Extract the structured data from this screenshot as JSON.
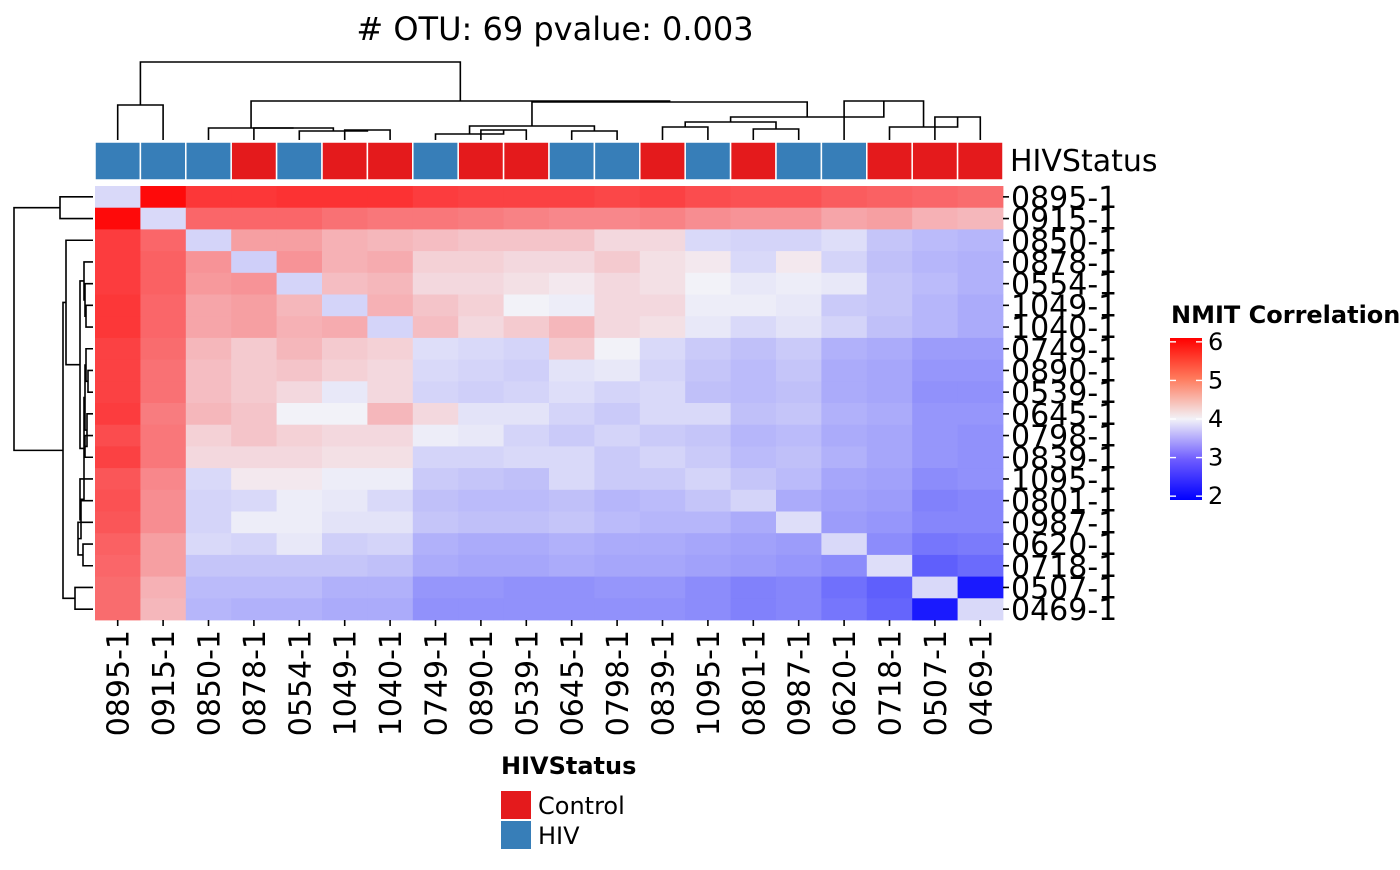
{
  "chart_data": {
    "type": "heatmap",
    "title": "# OTU: 69 pvalue: 0.003",
    "samples": [
      "0895-1",
      "0915-1",
      "0850-1",
      "0878-1",
      "0554-1",
      "1049-1",
      "1040-1",
      "0749-1",
      "0890-1",
      "0539-1",
      "0645-1",
      "0798-1",
      "0839-1",
      "1095-1",
      "0801-1",
      "0987-1",
      "0620-1",
      "0718-1",
      "0507-1",
      "0469-1"
    ],
    "rows": [
      "0895-1",
      "0915-1",
      "0850-1",
      "0878-1",
      "0554-1",
      "1049-1",
      "1040-1",
      "0749-1",
      "0890-1",
      "0539-1",
      "0645-1",
      "0798-1",
      "0839-1",
      "1095-1",
      "0801-1",
      "0987-1",
      "0620-1",
      "0718-1",
      "0507-1",
      "0469-1"
    ],
    "hiv_status": [
      "HIV",
      "HIV",
      "HIV",
      "Control",
      "HIV",
      "Control",
      "Control",
      "HIV",
      "Control",
      "Control",
      "HIV",
      "HIV",
      "Control",
      "HIV",
      "Control",
      "HIV",
      "HIV",
      "Control",
      "Control",
      "Control"
    ],
    "annotation_label": "HIVStatus",
    "values": [
      [
        3.75,
        6.0,
        5.55,
        5.55,
        5.6,
        5.6,
        5.6,
        5.5,
        5.45,
        5.45,
        5.45,
        5.4,
        5.45,
        5.35,
        5.3,
        5.3,
        5.2,
        5.15,
        5.1,
        5.05
      ],
      [
        6.0,
        3.75,
        5.1,
        5.1,
        5.1,
        5.0,
        4.95,
        4.95,
        4.9,
        4.85,
        4.8,
        4.8,
        4.85,
        4.75,
        4.7,
        4.7,
        4.55,
        4.6,
        4.45,
        4.4
      ],
      [
        5.5,
        5.1,
        3.7,
        4.6,
        4.6,
        4.45,
        4.4,
        4.35,
        4.3,
        4.3,
        4.3,
        4.15,
        4.15,
        3.75,
        3.7,
        3.7,
        3.8,
        3.55,
        3.45,
        3.4
      ],
      [
        5.5,
        5.15,
        4.7,
        3.65,
        4.7,
        4.45,
        4.5,
        4.2,
        4.2,
        4.15,
        4.15,
        4.25,
        4.1,
        4.05,
        3.75,
        4.05,
        3.7,
        3.5,
        3.4,
        3.35
      ],
      [
        5.5,
        5.15,
        4.65,
        4.7,
        3.7,
        4.35,
        4.4,
        4.15,
        4.15,
        4.1,
        4.05,
        4.15,
        4.1,
        4.0,
        3.9,
        3.95,
        3.9,
        3.55,
        3.45,
        3.35
      ],
      [
        5.55,
        5.1,
        4.55,
        4.6,
        4.4,
        3.7,
        4.45,
        4.3,
        4.2,
        4.0,
        3.95,
        4.15,
        4.15,
        3.95,
        3.95,
        3.9,
        3.6,
        3.55,
        3.4,
        3.3
      ],
      [
        5.55,
        5.1,
        4.55,
        4.6,
        4.45,
        4.5,
        3.7,
        4.35,
        4.15,
        4.25,
        4.4,
        4.15,
        4.1,
        3.9,
        3.75,
        3.85,
        3.7,
        3.5,
        3.4,
        3.3
      ],
      [
        5.45,
        5.05,
        4.4,
        4.25,
        4.4,
        4.25,
        4.2,
        3.8,
        3.75,
        3.7,
        4.25,
        4.0,
        3.75,
        3.6,
        3.5,
        3.6,
        3.35,
        3.3,
        3.15,
        3.15
      ],
      [
        5.45,
        5.0,
        4.35,
        4.25,
        4.3,
        4.2,
        4.15,
        3.75,
        3.7,
        3.65,
        3.85,
        3.9,
        3.7,
        3.55,
        3.45,
        3.55,
        3.3,
        3.25,
        3.1,
        3.1
      ],
      [
        5.45,
        5.0,
        4.35,
        4.25,
        4.15,
        3.9,
        4.15,
        3.7,
        3.65,
        3.7,
        3.8,
        3.7,
        3.75,
        3.5,
        3.45,
        3.5,
        3.3,
        3.25,
        3.05,
        3.05
      ],
      [
        5.5,
        4.9,
        4.4,
        4.3,
        4.0,
        4.0,
        4.4,
        4.15,
        3.85,
        3.85,
        3.7,
        3.6,
        3.75,
        3.75,
        3.5,
        3.55,
        3.35,
        3.3,
        3.1,
        3.1
      ],
      [
        5.35,
        4.95,
        4.2,
        4.3,
        4.2,
        4.15,
        4.15,
        3.95,
        3.9,
        3.7,
        3.6,
        3.7,
        3.6,
        3.55,
        3.4,
        3.45,
        3.3,
        3.25,
        3.1,
        3.05
      ],
      [
        5.45,
        4.95,
        4.15,
        4.15,
        4.15,
        4.1,
        4.1,
        3.7,
        3.7,
        3.75,
        3.75,
        3.6,
        3.7,
        3.6,
        3.45,
        3.5,
        3.35,
        3.25,
        3.1,
        3.05
      ],
      [
        5.25,
        4.8,
        3.75,
        4.05,
        4.05,
        3.95,
        3.95,
        3.6,
        3.55,
        3.5,
        3.75,
        3.6,
        3.6,
        3.7,
        3.55,
        3.45,
        3.25,
        3.2,
        3.0,
        3.05
      ],
      [
        5.3,
        4.75,
        3.7,
        3.75,
        3.95,
        3.9,
        3.75,
        3.5,
        3.45,
        3.45,
        3.5,
        3.4,
        3.45,
        3.55,
        3.7,
        3.3,
        3.2,
        3.15,
        2.9,
        2.95
      ],
      [
        5.25,
        4.75,
        3.7,
        3.95,
        3.95,
        3.85,
        3.85,
        3.55,
        3.5,
        3.5,
        3.55,
        3.45,
        3.4,
        3.4,
        3.3,
        3.8,
        3.15,
        3.1,
        2.95,
        2.95
      ],
      [
        5.15,
        4.6,
        3.75,
        3.7,
        3.9,
        3.65,
        3.7,
        3.35,
        3.3,
        3.3,
        3.35,
        3.3,
        3.3,
        3.25,
        3.2,
        3.15,
        3.75,
        3.0,
        2.8,
        2.85
      ],
      [
        5.1,
        4.6,
        3.55,
        3.55,
        3.55,
        3.55,
        3.5,
        3.3,
        3.25,
        3.25,
        3.3,
        3.25,
        3.25,
        3.2,
        3.15,
        3.1,
        3.0,
        3.8,
        2.6,
        2.7
      ],
      [
        5.05,
        4.45,
        3.45,
        3.45,
        3.45,
        3.35,
        3.35,
        3.1,
        3.1,
        3.05,
        3.05,
        3.1,
        3.1,
        3.0,
        2.9,
        2.95,
        2.75,
        2.6,
        3.75,
        2.05
      ],
      [
        5.05,
        4.4,
        3.4,
        3.35,
        3.35,
        3.3,
        3.3,
        3.05,
        3.05,
        3.05,
        3.05,
        3.05,
        3.05,
        3.0,
        2.9,
        2.95,
        2.8,
        2.65,
        2.05,
        3.75
      ]
    ],
    "color_scale": {
      "title": "NMIT Correlation",
      "ticks": [
        "6",
        "5",
        "4",
        "3",
        "2"
      ],
      "range": [
        1.9,
        6.1
      ],
      "low_color": "#0000ff",
      "mid_color": "#f2f2f8",
      "high_color": "#ff0000"
    },
    "status_legend": {
      "title": "HIVStatus",
      "items": [
        {
          "label": "Control",
          "color": "#e41a1c"
        },
        {
          "label": "HIV",
          "color": "#377eb8"
        }
      ]
    }
  }
}
